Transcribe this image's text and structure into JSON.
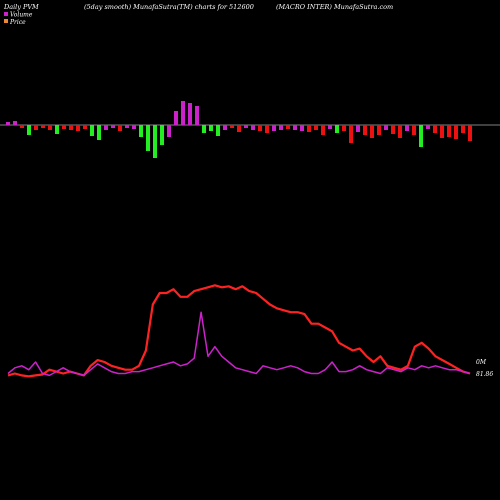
{
  "header": {
    "left": "Daily PVM",
    "center": "(5day smooth) MunafaSutra(TM) charts for 512600",
    "right": "(MACRO INTER) MunafaSutra.com"
  },
  "legend": [
    {
      "label": "Volume",
      "color": "#cc22cc"
    },
    {
      "label": "Price",
      "color": "#ee8833"
    }
  ],
  "colors": {
    "background": "#000000",
    "baseline": "#ffffff",
    "bar_up": "#cc22cc",
    "bar_down_big": "#22ee22",
    "bar_down_small": "#ee1111",
    "price_line": "#ff2222",
    "volume_line": "#cc22cc"
  },
  "end_labels": {
    "volume": "0M",
    "price": "81.86"
  },
  "chart_data": {
    "type": "line",
    "series_pvm": {
      "name": "PVM",
      "values": [
        3,
        4,
        -3,
        -10,
        -5,
        -3,
        -5,
        -9,
        -4,
        -5,
        -6,
        -4,
        -11,
        -15,
        -5,
        -3,
        -6,
        -3,
        -4,
        -12,
        -26,
        -33,
        -20,
        -12,
        14,
        24,
        22,
        19,
        -8,
        -6,
        -11,
        -5,
        -3,
        -7,
        -3,
        -5,
        -6,
        -8,
        -6,
        -5,
        -4,
        -5,
        -6,
        -7,
        -5,
        -10,
        -4,
        -8,
        -6,
        -18,
        -7,
        -10,
        -13,
        -10,
        -5,
        -9,
        -13,
        -6,
        -10,
        -22,
        -4,
        -8,
        -13,
        -12,
        -14,
        -8,
        -16
      ],
      "colors": [
        "up",
        "up",
        "small",
        "big",
        "small",
        "small",
        "small",
        "big",
        "small",
        "small",
        "small",
        "small",
        "big",
        "big",
        "up",
        "up",
        "small",
        "up",
        "up",
        "big",
        "big",
        "big",
        "big",
        "up",
        "up",
        "up",
        "up",
        "up",
        "big",
        "big",
        "big",
        "up",
        "small",
        "small",
        "up",
        "up",
        "small",
        "small",
        "up",
        "up",
        "small",
        "up",
        "up",
        "small",
        "small",
        "small",
        "up",
        "big",
        "small",
        "small",
        "up",
        "small",
        "small",
        "small",
        "up",
        "small",
        "small",
        "up",
        "small",
        "big",
        "up",
        "small",
        "small",
        "small",
        "small",
        "small",
        "small"
      ]
    },
    "series_price": {
      "name": "Price",
      "values": [
        45,
        46,
        45,
        44.5,
        45,
        45.5,
        48,
        47,
        46,
        47,
        46,
        45,
        50,
        53,
        52,
        50,
        49,
        48,
        48,
        50,
        58,
        82,
        88,
        88,
        90,
        86,
        86,
        89,
        90,
        91,
        92,
        91,
        91.5,
        90,
        91.5,
        89,
        88,
        85,
        82,
        80,
        79,
        78,
        78,
        77,
        72,
        72,
        70,
        68,
        62,
        60,
        58,
        59,
        55,
        52,
        55,
        50,
        49,
        48,
        50,
        60,
        62,
        59,
        55,
        53,
        51,
        49,
        47,
        46
      ]
    },
    "series_volume": {
      "name": "Volume",
      "values": [
        46,
        49,
        50,
        48,
        52,
        46,
        45,
        47,
        49,
        47,
        46,
        45,
        48,
        51,
        49,
        47,
        46,
        46,
        47,
        47,
        48,
        49,
        50,
        51,
        52,
        50,
        51,
        54,
        78,
        55,
        60,
        55,
        52,
        49,
        48,
        47,
        46,
        50,
        49,
        48,
        49,
        50,
        49,
        47,
        46,
        46,
        48,
        52,
        47,
        47,
        48,
        50,
        48,
        47,
        46,
        49,
        48,
        47,
        49,
        48,
        50,
        49,
        50,
        49,
        48,
        48,
        47,
        46
      ]
    },
    "xlabel": "",
    "ylabel": "",
    "grid": false
  }
}
